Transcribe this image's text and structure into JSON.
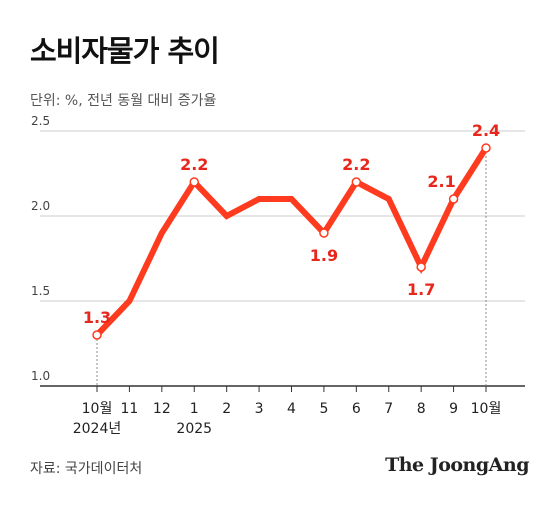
{
  "title": "소비자물가 추이",
  "subtitle": "단위: %, 전년 동월 대비 증가율",
  "source": "자료: 국가데이터처",
  "brand": "The JoongAng",
  "colors": {
    "line": "#FF3B1F",
    "label": "#E8261B",
    "grid": "#cccccc",
    "axis": "#333333",
    "tick_text": "#444444"
  },
  "chart_data": {
    "type": "line",
    "title": "소비자물가 추이",
    "ylabel": "",
    "xlabel": "",
    "ylim": [
      1.0,
      2.5
    ],
    "yticks": [
      "1.0",
      "1.5",
      "2.0",
      "2.5"
    ],
    "grid": true,
    "categories": [
      "10월",
      "11",
      "12",
      "1",
      "2",
      "3",
      "4",
      "5",
      "6",
      "7",
      "8",
      "9",
      "10월"
    ],
    "year_labels": [
      {
        "index": 0,
        "text": "2024년"
      },
      {
        "index": 3,
        "text": "2025"
      }
    ],
    "series": [
      {
        "values": [
          1.3,
          1.5,
          1.9,
          2.2,
          2.0,
          2.1,
          2.1,
          1.9,
          2.2,
          2.1,
          1.7,
          2.1,
          2.4
        ]
      }
    ],
    "annotations": [
      {
        "index": 0,
        "text": "1.3",
        "position": "above"
      },
      {
        "index": 3,
        "text": "2.2",
        "position": "above"
      },
      {
        "index": 7,
        "text": "1.9",
        "position": "below"
      },
      {
        "index": 8,
        "text": "2.2",
        "position": "above"
      },
      {
        "index": 10,
        "text": "1.7",
        "position": "below"
      },
      {
        "index": 11,
        "text": "2.1",
        "position": "left"
      },
      {
        "index": 12,
        "text": "2.4",
        "position": "above"
      }
    ],
    "markers_at": [
      0,
      3,
      7,
      8,
      10,
      11,
      12
    ],
    "dashed_guides_at": [
      0,
      12
    ]
  }
}
